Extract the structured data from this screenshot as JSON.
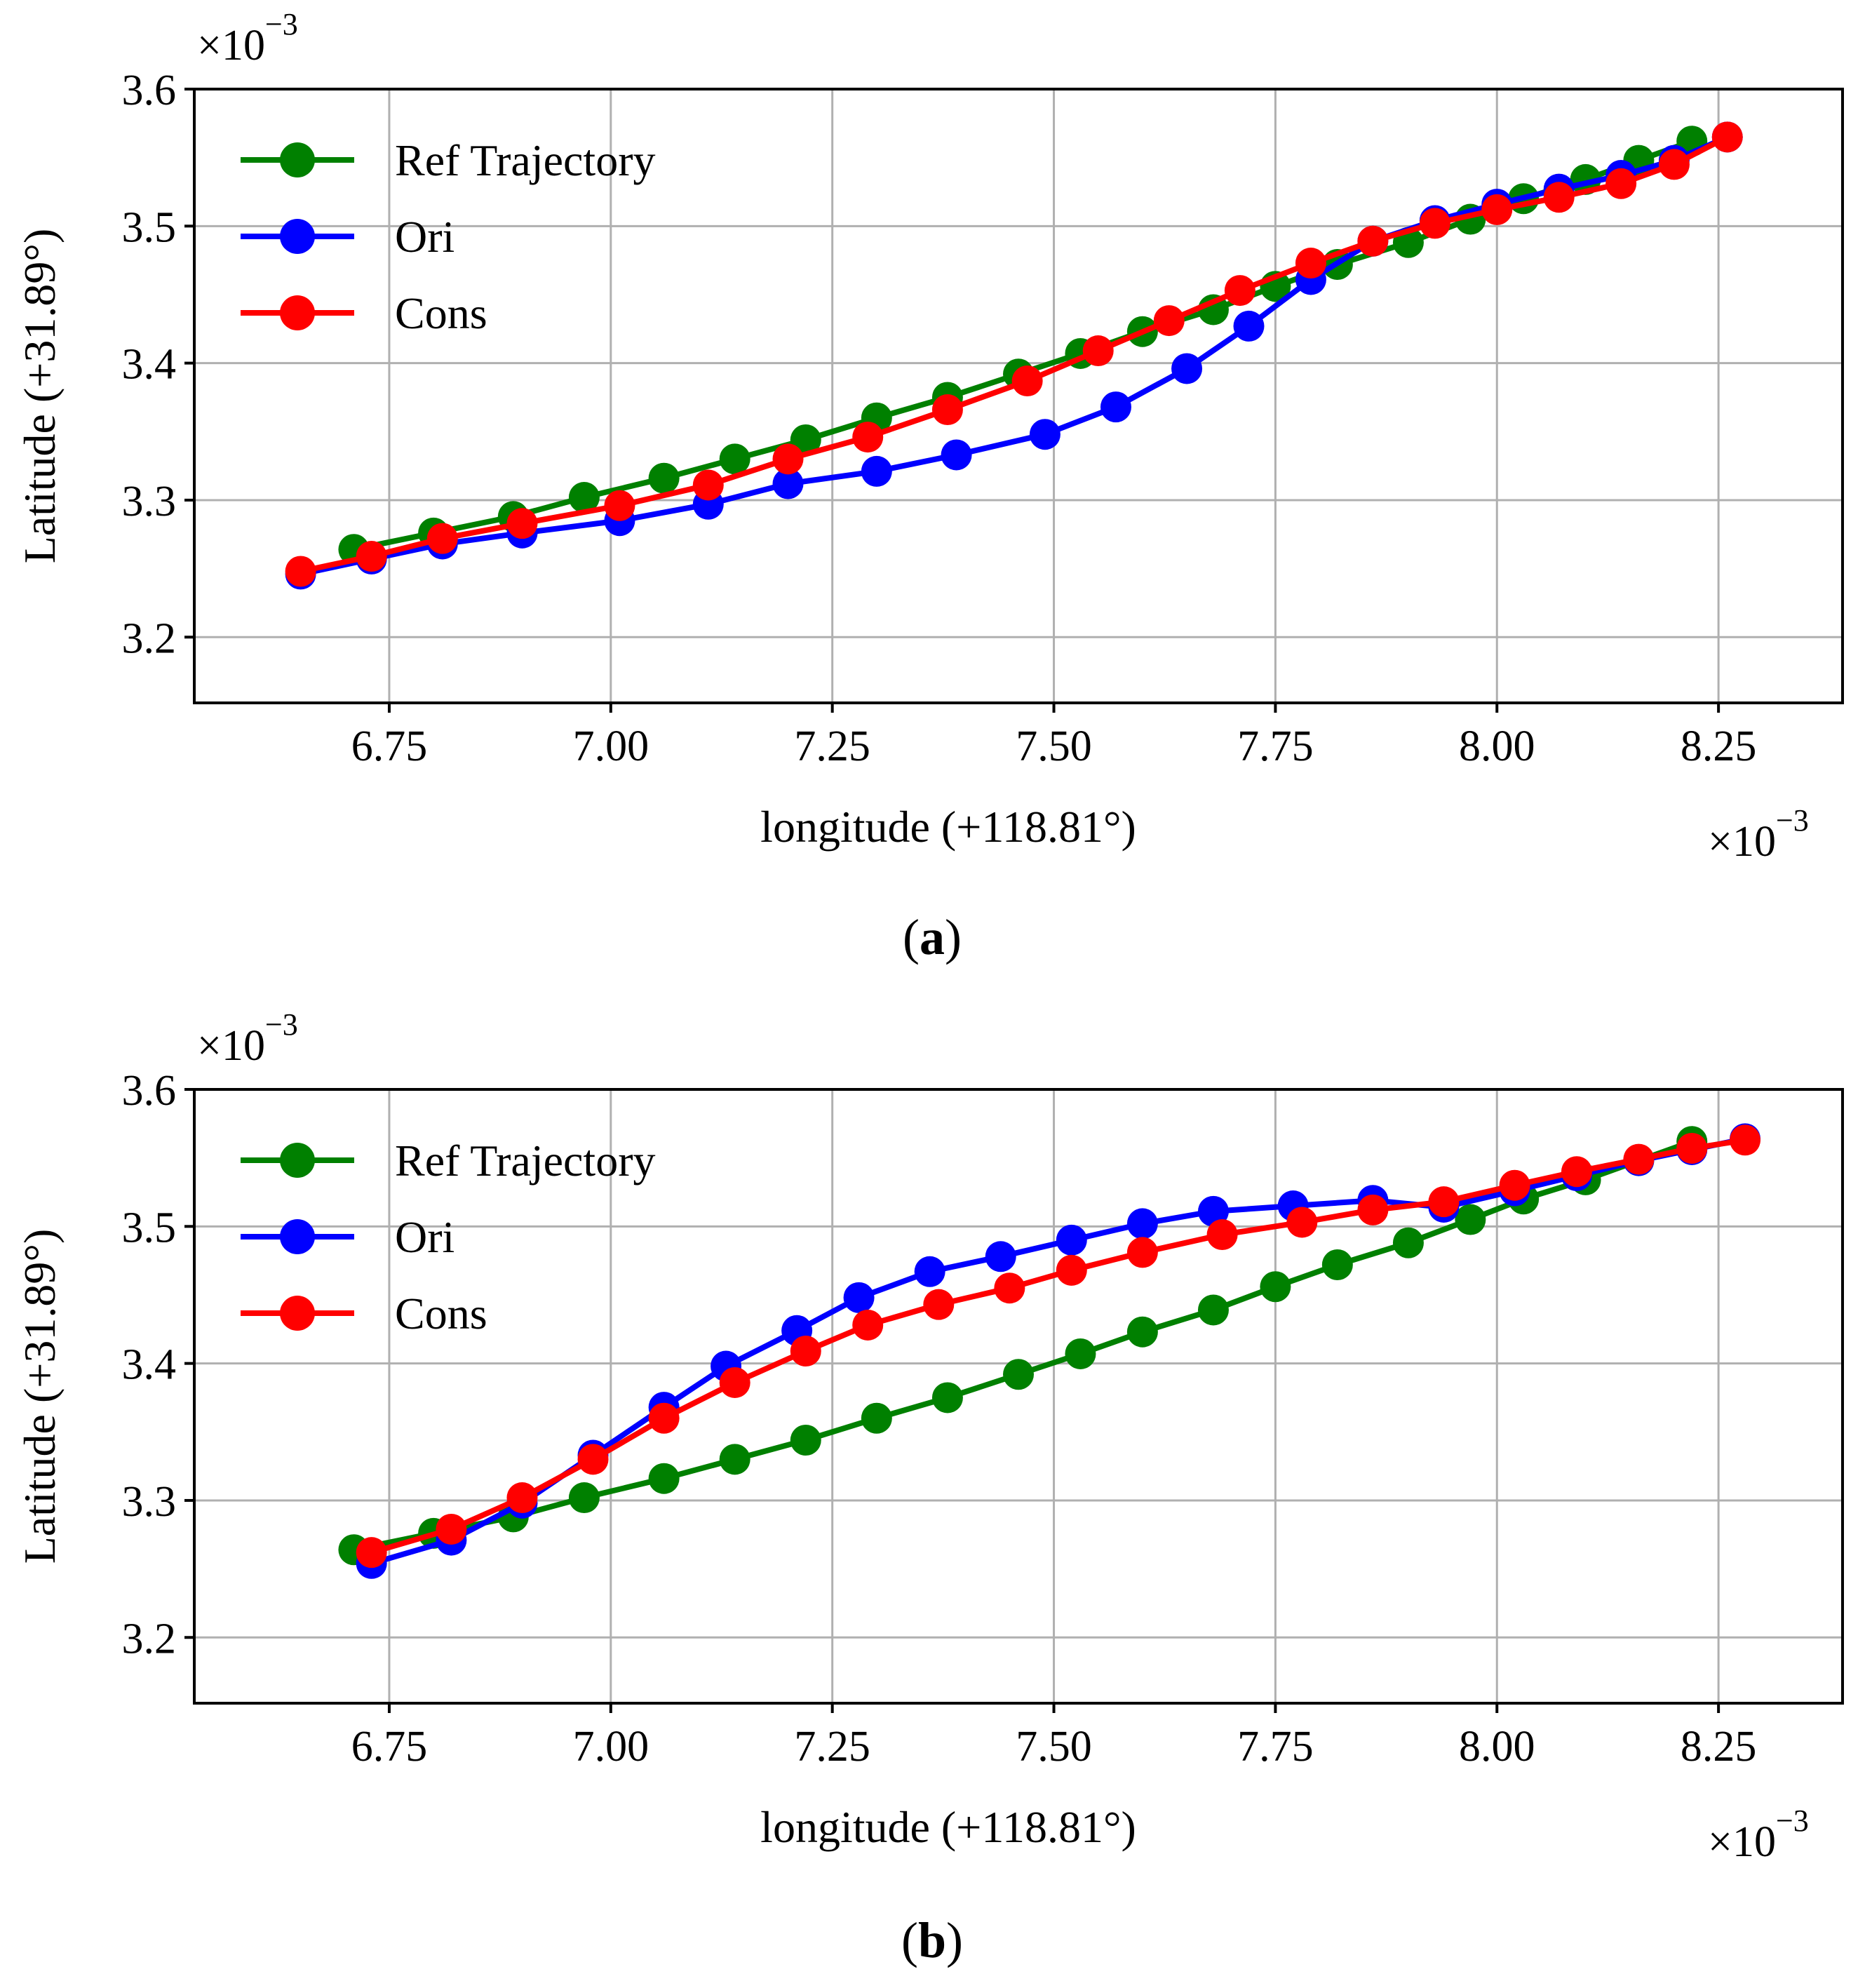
{
  "chart_data": [
    {
      "type": "line",
      "panel_label": "a",
      "xlabel": "longitude (+118.81°)",
      "ylabel": "Latitude (+31.89°)",
      "x_multiplier": "×10",
      "x_multiplier_exp": "−3",
      "y_multiplier": "×10",
      "y_multiplier_exp": "−3",
      "xlim": [
        6.53,
        8.39
      ],
      "ylim": [
        3.152,
        3.6
      ],
      "xticks": [
        6.75,
        7.0,
        7.25,
        7.5,
        7.75,
        8.0,
        8.25
      ],
      "xtick_labels": [
        "6.75",
        "7.00",
        "7.25",
        "7.50",
        "7.75",
        "8.00",
        "8.25"
      ],
      "yticks": [
        3.2,
        3.3,
        3.4,
        3.5,
        3.6
      ],
      "ytick_labels": [
        "3.2",
        "3.3",
        "3.4",
        "3.5",
        "3.6"
      ],
      "grid": true,
      "legend_position": "top-left",
      "series": [
        {
          "name": "Ref Trajectory",
          "color": "#008000",
          "x": [
            6.71,
            6.8,
            6.89,
            6.97,
            7.06,
            7.14,
            7.22,
            7.3,
            7.38,
            7.46,
            7.53,
            7.6,
            7.68,
            7.75,
            7.82,
            7.9,
            7.97,
            8.03,
            8.1,
            8.16,
            8.22
          ],
          "y": [
            3.264,
            3.276,
            3.288,
            3.302,
            3.316,
            3.33,
            3.344,
            3.36,
            3.375,
            3.392,
            3.407,
            3.423,
            3.439,
            3.456,
            3.472,
            3.488,
            3.505,
            3.52,
            3.534,
            3.548,
            3.562
          ]
        },
        {
          "name": "Ori",
          "color": "#0000ff",
          "x": [
            6.65,
            6.73,
            6.81,
            6.9,
            7.01,
            7.11,
            7.2,
            7.3,
            7.39,
            7.49,
            7.57,
            7.65,
            7.72,
            7.79,
            7.86,
            7.93,
            8.0,
            8.07,
            8.14,
            8.2,
            8.26
          ],
          "y": [
            3.246,
            3.257,
            3.268,
            3.276,
            3.285,
            3.297,
            3.312,
            3.321,
            3.333,
            3.348,
            3.368,
            3.396,
            3.427,
            3.461,
            3.489,
            3.504,
            3.516,
            3.527,
            3.537,
            3.548,
            3.565
          ]
        },
        {
          "name": "Cons",
          "color": "#ff0000",
          "x": [
            6.65,
            6.73,
            6.81,
            6.9,
            7.01,
            7.11,
            7.2,
            7.29,
            7.38,
            7.47,
            7.55,
            7.63,
            7.71,
            7.79,
            7.86,
            7.93,
            8.0,
            8.07,
            8.14,
            8.2,
            8.26
          ],
          "y": [
            3.248,
            3.259,
            3.272,
            3.283,
            3.296,
            3.311,
            3.33,
            3.346,
            3.366,
            3.387,
            3.409,
            3.431,
            3.453,
            3.473,
            3.489,
            3.502,
            3.512,
            3.521,
            3.531,
            3.545,
            3.565
          ]
        }
      ]
    },
    {
      "type": "line",
      "panel_label": "b",
      "xlabel": "longitude (+118.81°)",
      "ylabel": "Latitude (+31.89°)",
      "x_multiplier": "×10",
      "x_multiplier_exp": "−3",
      "y_multiplier": "×10",
      "y_multiplier_exp": "−3",
      "xlim": [
        6.53,
        8.39
      ],
      "ylim": [
        3.152,
        3.6
      ],
      "xticks": [
        6.75,
        7.0,
        7.25,
        7.5,
        7.75,
        8.0,
        8.25
      ],
      "xtick_labels": [
        "6.75",
        "7.00",
        "7.25",
        "7.50",
        "7.75",
        "8.00",
        "8.25"
      ],
      "yticks": [
        3.2,
        3.3,
        3.4,
        3.5,
        3.6
      ],
      "ytick_labels": [
        "3.2",
        "3.3",
        "3.4",
        "3.5",
        "3.6"
      ],
      "grid": true,
      "legend_position": "top-left",
      "series": [
        {
          "name": "Ref Trajectory",
          "color": "#008000",
          "x": [
            6.71,
            6.8,
            6.89,
            6.97,
            7.06,
            7.14,
            7.22,
            7.3,
            7.38,
            7.46,
            7.53,
            7.6,
            7.68,
            7.75,
            7.82,
            7.9,
            7.97,
            8.03,
            8.1,
            8.16,
            8.22
          ],
          "y": [
            3.264,
            3.276,
            3.288,
            3.302,
            3.316,
            3.33,
            3.344,
            3.36,
            3.375,
            3.392,
            3.407,
            3.423,
            3.439,
            3.456,
            3.472,
            3.488,
            3.505,
            3.52,
            3.534,
            3.548,
            3.562
          ]
        },
        {
          "name": "Ori",
          "color": "#0000ff",
          "x": [
            6.73,
            6.82,
            6.9,
            6.98,
            7.06,
            7.13,
            7.21,
            7.28,
            7.36,
            7.44,
            7.52,
            7.6,
            7.68,
            7.77,
            7.86,
            7.94,
            8.02,
            8.09,
            8.16,
            8.22,
            8.28
          ],
          "y": [
            3.254,
            3.271,
            3.298,
            3.333,
            3.368,
            3.398,
            3.424,
            3.448,
            3.467,
            3.478,
            3.49,
            3.502,
            3.511,
            3.515,
            3.519,
            3.514,
            3.526,
            3.537,
            3.548,
            3.556,
            3.564
          ]
        },
        {
          "name": "Cons",
          "color": "#ff0000",
          "x": [
            6.73,
            6.82,
            6.9,
            6.98,
            7.06,
            7.14,
            7.22,
            7.29,
            7.37,
            7.45,
            7.52,
            7.6,
            7.69,
            7.78,
            7.86,
            7.94,
            8.02,
            8.09,
            8.16,
            8.22,
            8.28
          ],
          "y": [
            3.262,
            3.279,
            3.302,
            3.33,
            3.36,
            3.386,
            3.409,
            3.428,
            3.443,
            3.455,
            3.468,
            3.481,
            3.494,
            3.503,
            3.512,
            3.518,
            3.53,
            3.54,
            3.549,
            3.557,
            3.563
          ]
        }
      ]
    }
  ]
}
